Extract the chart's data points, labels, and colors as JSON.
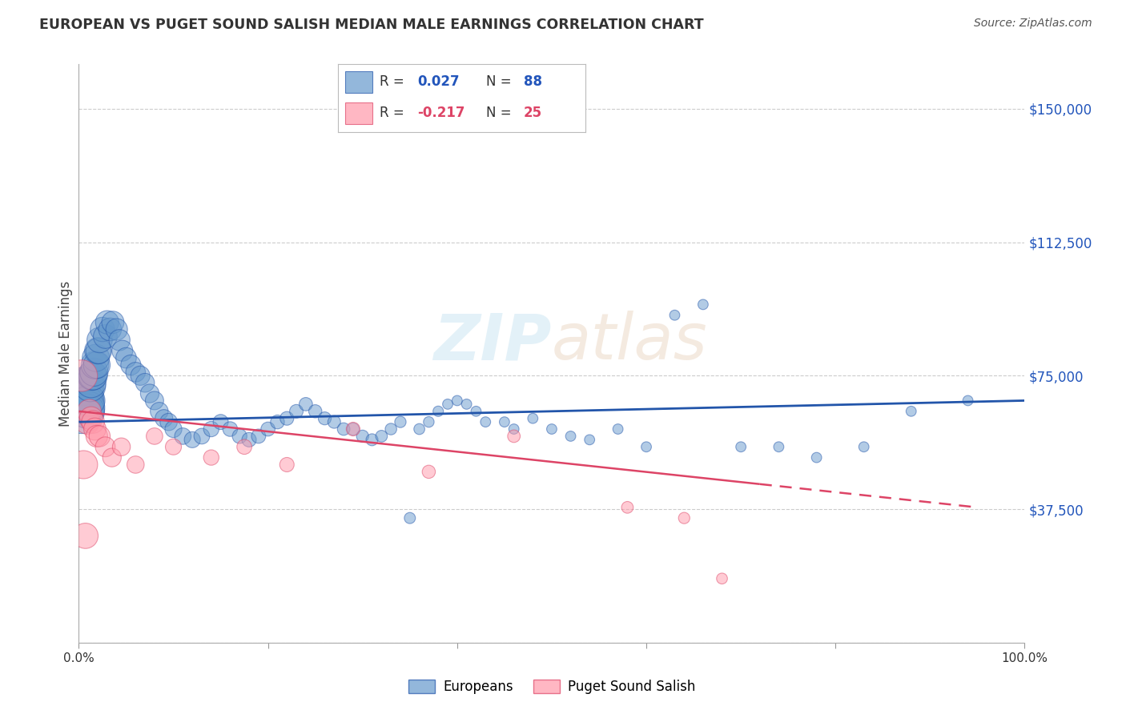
{
  "title": "EUROPEAN VS PUGET SOUND SALISH MEDIAN MALE EARNINGS CORRELATION CHART",
  "source": "Source: ZipAtlas.com",
  "ylabel": "Median Male Earnings",
  "watermark": "ZIPatlas",
  "xlim": [
    0.0,
    1.0
  ],
  "ylim": [
    0,
    162500
  ],
  "yticks": [
    0,
    37500,
    75000,
    112500,
    150000
  ],
  "ytick_labels": [
    "",
    "$37,500",
    "$75,000",
    "$112,500",
    "$150,000"
  ],
  "xticks": [
    0.0,
    0.2,
    0.4,
    0.6,
    0.8,
    1.0
  ],
  "xtick_labels": [
    "0.0%",
    "",
    "",
    "",
    "",
    "100.0%"
  ],
  "legend_blue_r": "0.027",
  "legend_blue_n": "88",
  "legend_pink_r": "-0.217",
  "legend_pink_n": "25",
  "legend_label_blue": "Europeans",
  "legend_label_pink": "Puget Sound Salish",
  "blue_color": "#6699cc",
  "pink_color": "#ff99aa",
  "trendline_blue_color": "#2255aa",
  "trendline_pink_color": "#dd4466",
  "background_color": "#ffffff",
  "grid_color": "#cccccc",
  "title_color": "#333333",
  "blue_x": [
    0.003,
    0.004,
    0.005,
    0.006,
    0.007,
    0.008,
    0.009,
    0.01,
    0.011,
    0.012,
    0.013,
    0.014,
    0.015,
    0.016,
    0.017,
    0.018,
    0.019,
    0.02,
    0.021,
    0.022,
    0.025,
    0.028,
    0.03,
    0.033,
    0.036,
    0.04,
    0.043,
    0.046,
    0.05,
    0.055,
    0.06,
    0.065,
    0.07,
    0.075,
    0.08,
    0.085,
    0.09,
    0.095,
    0.1,
    0.11,
    0.12,
    0.13,
    0.14,
    0.15,
    0.16,
    0.17,
    0.18,
    0.19,
    0.2,
    0.21,
    0.22,
    0.23,
    0.24,
    0.25,
    0.26,
    0.27,
    0.28,
    0.29,
    0.3,
    0.31,
    0.32,
    0.33,
    0.34,
    0.35,
    0.36,
    0.37,
    0.38,
    0.39,
    0.4,
    0.41,
    0.42,
    0.43,
    0.45,
    0.46,
    0.48,
    0.5,
    0.52,
    0.54,
    0.57,
    0.6,
    0.63,
    0.66,
    0.7,
    0.74,
    0.78,
    0.83,
    0.88,
    0.94
  ],
  "blue_y": [
    65000,
    68000,
    70000,
    72000,
    68000,
    67000,
    65000,
    66000,
    68000,
    72000,
    73000,
    75000,
    75000,
    76000,
    78000,
    80000,
    78000,
    82000,
    82000,
    85000,
    88000,
    86000,
    90000,
    88000,
    90000,
    88000,
    85000,
    82000,
    80000,
    78000,
    76000,
    75000,
    73000,
    70000,
    68000,
    65000,
    63000,
    62000,
    60000,
    58000,
    57000,
    58000,
    60000,
    62000,
    60000,
    58000,
    57000,
    58000,
    60000,
    62000,
    63000,
    65000,
    67000,
    65000,
    63000,
    62000,
    60000,
    60000,
    58000,
    57000,
    58000,
    60000,
    62000,
    35000,
    60000,
    62000,
    65000,
    67000,
    68000,
    67000,
    65000,
    62000,
    62000,
    60000,
    63000,
    60000,
    58000,
    57000,
    60000,
    55000,
    92000,
    95000,
    55000,
    55000,
    52000,
    55000,
    65000,
    68000
  ],
  "blue_size": [
    400,
    350,
    320,
    300,
    280,
    260,
    240,
    220,
    200,
    190,
    180,
    170,
    165,
    160,
    155,
    150,
    145,
    140,
    135,
    130,
    120,
    115,
    110,
    105,
    100,
    95,
    90,
    88,
    85,
    82,
    78,
    75,
    72,
    70,
    68,
    65,
    63,
    60,
    58,
    55,
    52,
    50,
    48,
    46,
    44,
    43,
    42,
    41,
    40,
    39,
    38,
    37,
    36,
    35,
    34,
    33,
    32,
    31,
    30,
    29,
    28,
    27,
    26,
    25,
    24,
    23,
    22,
    21,
    21,
    21,
    21,
    21,
    21,
    21,
    21,
    21,
    21,
    21,
    21,
    21,
    21,
    21,
    21,
    21,
    21,
    21,
    21,
    21
  ],
  "pink_x": [
    0.003,
    0.005,
    0.007,
    0.009,
    0.011,
    0.013,
    0.015,
    0.017,
    0.019,
    0.022,
    0.028,
    0.035,
    0.045,
    0.06,
    0.08,
    0.1,
    0.14,
    0.175,
    0.22,
    0.29,
    0.37,
    0.46,
    0.58,
    0.64,
    0.68
  ],
  "pink_y": [
    75000,
    50000,
    30000,
    62000,
    65000,
    63000,
    62000,
    60000,
    58000,
    58000,
    55000,
    52000,
    55000,
    50000,
    58000,
    55000,
    52000,
    55000,
    50000,
    60000,
    48000,
    58000,
    38000,
    35000,
    18000
  ],
  "pink_size": [
    200,
    160,
    130,
    120,
    115,
    110,
    105,
    100,
    95,
    90,
    80,
    70,
    65,
    60,
    55,
    52,
    48,
    45,
    42,
    38,
    35,
    32,
    28,
    26,
    24
  ],
  "blue_trendline_x": [
    0.0,
    1.0
  ],
  "blue_trendline_y": [
    62000,
    68000
  ],
  "pink_trendline_x": [
    0.0,
    0.95
  ],
  "pink_trendline_y": [
    65000,
    38000
  ]
}
